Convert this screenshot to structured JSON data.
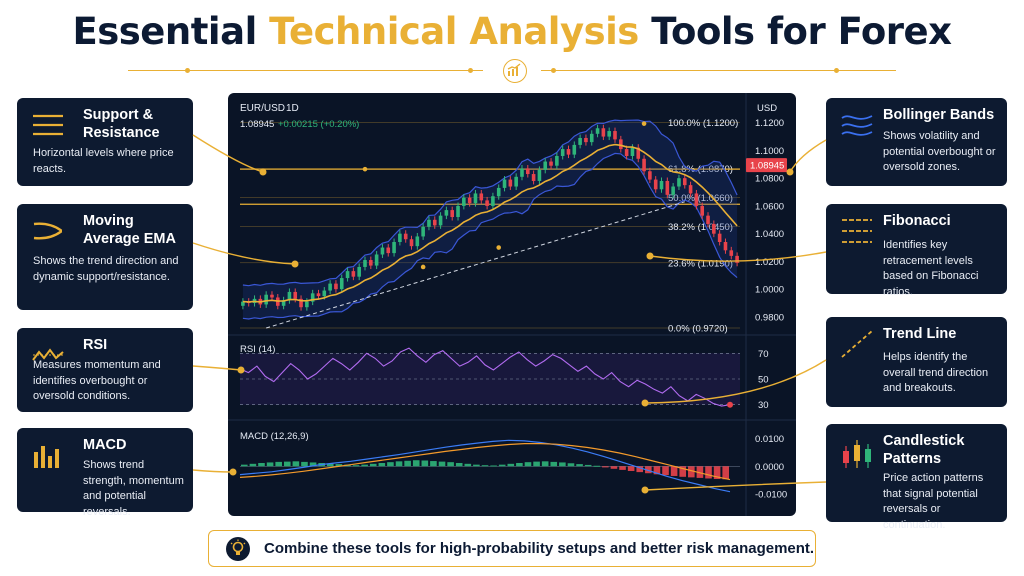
{
  "title": {
    "part1": "Essential",
    "accent": "Technical Analysis",
    "part2": "Tools for Forex"
  },
  "left_cards": [
    {
      "title": "Support & Resistance",
      "desc": "Horizontal levels where price reacts.",
      "icon": "support-resistance-icon"
    },
    {
      "title": "Moving Average EMA",
      "desc": "Shows the trend direction and dynamic support/resistance.",
      "icon": "moving-average-icon"
    },
    {
      "title": "RSI",
      "desc": "Measures momentum and identifies overbought or oversold conditions.",
      "icon": "rsi-icon"
    },
    {
      "title": "MACD",
      "desc": "Shows trend strength, momentum and potential reversals.",
      "icon": "macd-icon"
    }
  ],
  "right_cards": [
    {
      "title": "Bollinger Bands",
      "desc": "Shows volatility and potential overbought or oversold zones.",
      "icon": "bollinger-icon"
    },
    {
      "title": "Fibonacci",
      "desc": "Identifies key retracement levels based on Fibonacci ratios.",
      "icon": "fibonacci-icon"
    },
    {
      "title": "Trend Line",
      "desc": "Helps identify the overall trend direction and breakouts.",
      "icon": "trend-line-icon"
    },
    {
      "title": "Candlestick Patterns",
      "desc": "Price action patterns that signal potential reversals or continuation.",
      "icon": "candlestick-icon"
    }
  ],
  "chart_data": {
    "type": "candlestick",
    "symbol": "EUR/USD",
    "timeframe": "1D",
    "price_readout": "1.08945",
    "change_readout": "+0.00215 (+0.20%)",
    "currency_label": "USD",
    "current_price_label": "1.08945",
    "current_price": 1.08945,
    "ylim": [
      0.972,
      1.127
    ],
    "y_ticks": [
      1.12,
      1.1,
      1.08,
      1.06,
      1.04,
      1.02,
      1.0,
      0.98
    ],
    "y_tick_labels": [
      "1.1200",
      "1.1000",
      "1.0800",
      "1.0600",
      "1.0400",
      "1.0200",
      "1.0000",
      "0.9800"
    ],
    "fib_levels": [
      {
        "label": "100.0% (1.1200)",
        "value": 1.12
      },
      {
        "label": "61.8% (1.0870)",
        "value": 1.087
      },
      {
        "label": "50.0% (1.0660)",
        "value": 1.066
      },
      {
        "label": "38.2% (1.0450)",
        "value": 1.045
      },
      {
        "label": "23.6% (1.0190)",
        "value": 1.019
      },
      {
        "label": "0.0% (0.9720)",
        "value": 0.972
      }
    ],
    "support_levels": [
      1.0865,
      1.0612
    ],
    "close": [
      0.991,
      0.99,
      0.993,
      0.989,
      0.996,
      0.994,
      0.988,
      0.992,
      0.998,
      0.993,
      0.987,
      0.991,
      0.997,
      0.995,
      0.999,
      1.004,
      1.0,
      1.008,
      1.013,
      1.009,
      1.016,
      1.021,
      1.017,
      1.025,
      1.03,
      1.026,
      1.034,
      1.04,
      1.036,
      1.031,
      1.038,
      1.045,
      1.05,
      1.046,
      1.053,
      1.057,
      1.052,
      1.06,
      1.066,
      1.062,
      1.069,
      1.064,
      1.06,
      1.067,
      1.073,
      1.079,
      1.074,
      1.081,
      1.087,
      1.083,
      1.078,
      1.086,
      1.092,
      1.089,
      1.096,
      1.101,
      1.097,
      1.104,
      1.109,
      1.106,
      1.112,
      1.116,
      1.11,
      1.114,
      1.108,
      1.101,
      1.096,
      1.102,
      1.094,
      1.085,
      1.079,
      1.072,
      1.078,
      1.068,
      1.074,
      1.08,
      1.075,
      1.069,
      1.06,
      1.053,
      1.047,
      1.04,
      1.034,
      1.028,
      1.024,
      1.019
    ],
    "rsi": {
      "label": "RSI (14)",
      "ylim": [
        22,
        78
      ],
      "ticks": [
        70,
        50,
        30
      ],
      "tick_labels": [
        "70",
        "50",
        "30"
      ],
      "values": [
        58,
        55,
        60,
        52,
        48,
        55,
        62,
        57,
        50,
        54,
        60,
        66,
        62,
        57,
        63,
        70,
        66,
        60,
        64,
        71,
        74,
        68,
        63,
        69,
        72,
        66,
        60,
        63,
        68,
        61,
        57,
        62,
        67,
        71,
        65,
        60,
        64,
        69,
        66,
        61,
        56,
        60,
        54,
        50,
        55,
        48,
        44,
        49,
        46,
        42,
        39,
        44,
        37,
        33,
        38,
        35,
        31,
        29,
        30
      ]
    },
    "macd": {
      "label": "MACD (12,26,9)",
      "ylim": [
        -0.014,
        0.0135
      ],
      "ticks": [
        0.01,
        0.0,
        -0.01
      ],
      "tick_labels": [
        "0.0100",
        "0.0000",
        "-0.0100"
      ],
      "histogram": [
        0.0006,
        0.0009,
        0.0012,
        0.0014,
        0.0016,
        0.0017,
        0.0018,
        0.0016,
        0.0014,
        0.0012,
        0.001,
        0.0008,
        0.0006,
        0.0004,
        0.0006,
        0.0009,
        0.0012,
        0.0015,
        0.0018,
        0.002,
        0.0022,
        0.0021,
        0.0019,
        0.0017,
        0.0015,
        0.0012,
        0.0009,
        0.0006,
        0.0004,
        0.0003,
        0.0006,
        0.0009,
        0.0012,
        0.0015,
        0.0017,
        0.0018,
        0.0016,
        0.0014,
        0.0011,
        0.0008,
        0.0005,
        0.0002,
        -0.0004,
        -0.0009,
        -0.0013,
        -0.0017,
        -0.0021,
        -0.0025,
        -0.0029,
        -0.0032,
        -0.0035,
        -0.0038,
        -0.004,
        -0.0042,
        -0.0044,
        -0.0046,
        -0.0047
      ],
      "macd_line": [
        -0.003,
        -0.0025,
        -0.002,
        -0.0012,
        -0.0004,
        0.0005,
        0.0012,
        0.0018,
        0.0026,
        0.0034,
        0.0042,
        0.0051,
        0.006,
        0.0069,
        0.0077,
        0.0084,
        0.009,
        0.0094,
        0.0092,
        0.0086,
        0.0078,
        0.0066,
        0.0052,
        0.0036,
        0.0018,
        0.0,
        -0.0018,
        -0.0036,
        -0.0052,
        -0.0066,
        -0.008,
        -0.0092
      ],
      "signal_line": [
        -0.004,
        -0.0036,
        -0.0031,
        -0.0025,
        -0.0018,
        -0.001,
        -0.0002,
        0.0006,
        0.0014,
        0.0022,
        0.003,
        0.0038,
        0.0046,
        0.0054,
        0.0061,
        0.0068,
        0.0074,
        0.0079,
        0.0082,
        0.0082,
        0.008,
        0.0075,
        0.0068,
        0.0059,
        0.0048,
        0.0035,
        0.0021,
        0.0007,
        -0.0008,
        -0.0022,
        -0.0036,
        -0.0048
      ]
    }
  },
  "footer": {
    "text": "Combine these tools for high-probability setups and better risk management.",
    "icon": "lightbulb-icon"
  },
  "colors": {
    "navy": "#0d1a30",
    "gold": "#e9b035",
    "bull": "#2fb57a",
    "bear": "#e8434b",
    "band": "#3a57d6",
    "rsi": "#b16bf0",
    "macd": "#3b7cf6",
    "signal": "#f39a2b"
  }
}
